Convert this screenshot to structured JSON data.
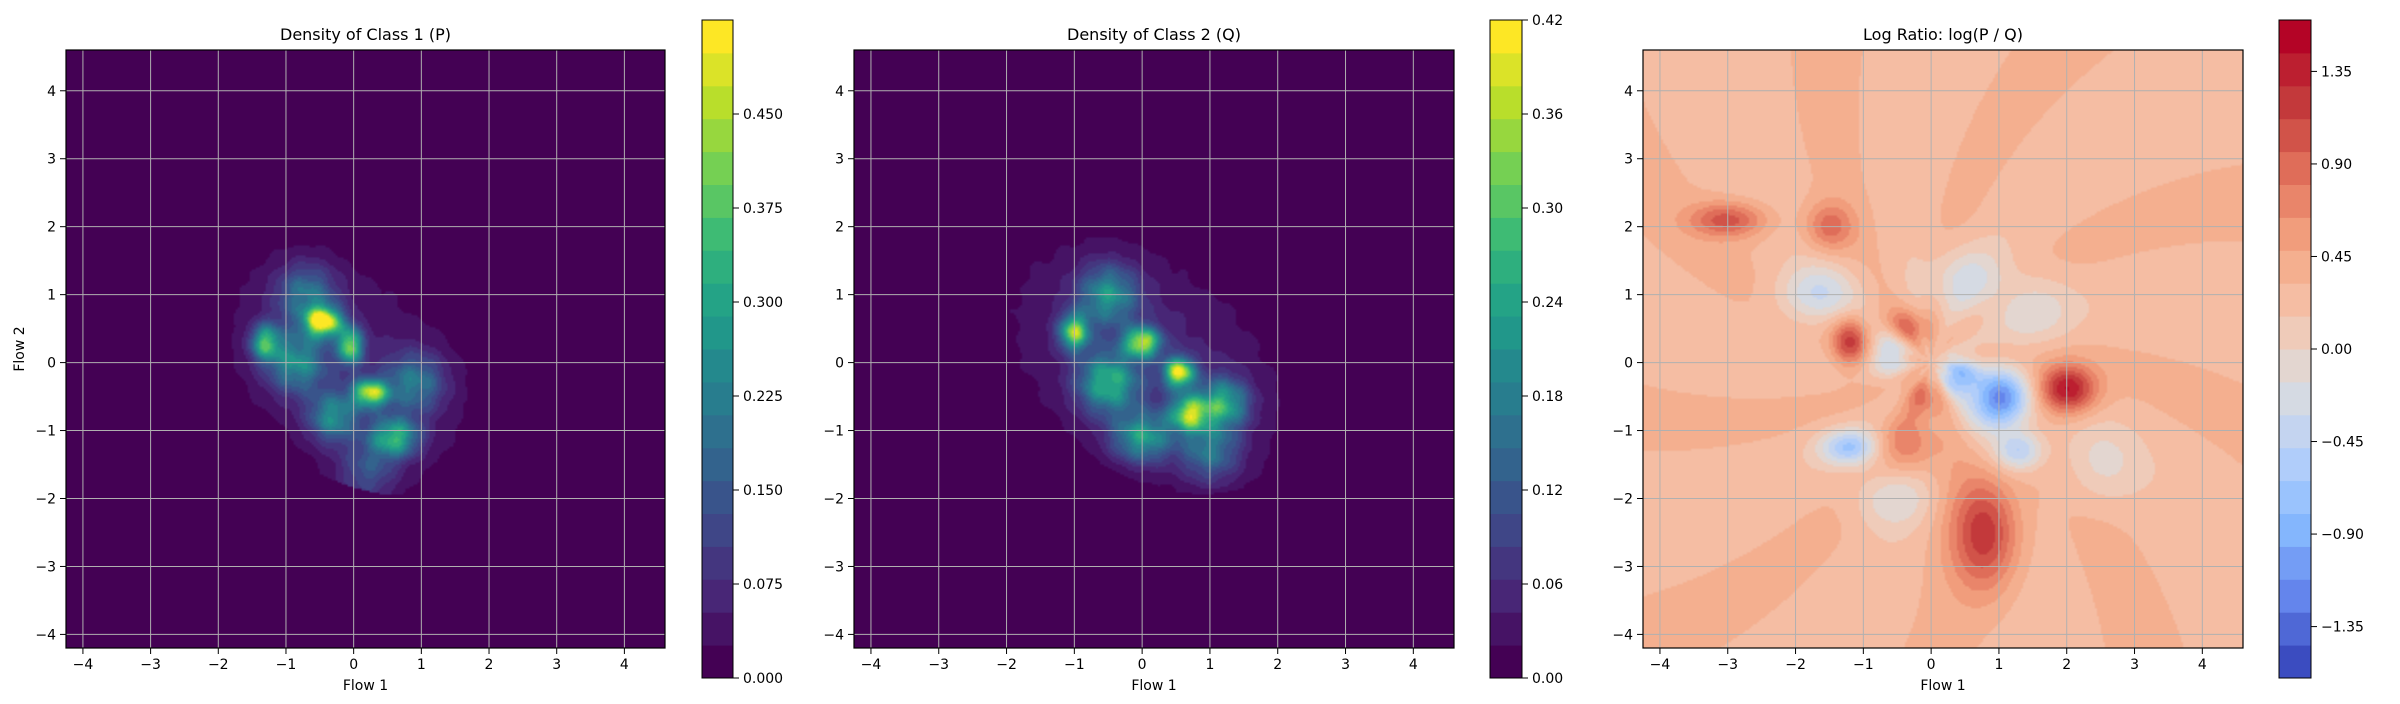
{
  "colors": {
    "viridis": [
      "#440154",
      "#482878",
      "#3e4989",
      "#31688e",
      "#26828e",
      "#1f9e89",
      "#35b779",
      "#6ece58",
      "#b5de2b",
      "#fde725"
    ],
    "coolwarm": [
      "#3b4cc0",
      "#6688ee",
      "#88bbff",
      "#b8d0f9",
      "#dddddd",
      "#f5c4ac",
      "#f4a582",
      "#e2735c",
      "#c43c3c",
      "#b40426"
    ],
    "grid": "#b0b0b0"
  },
  "chart_data": [
    {
      "type": "heatmap",
      "title": "Density of Class 1 (P)",
      "xlabel": "Flow 1",
      "ylabel": "Flow 2",
      "xlim": [
        -4.25,
        4.6
      ],
      "ylim": [
        -4.2,
        4.6
      ],
      "xticks": [
        -4,
        -3,
        -2,
        -1,
        0,
        1,
        2,
        3,
        4
      ],
      "yticks": [
        -4,
        -3,
        -2,
        -1,
        0,
        1,
        2,
        3,
        4
      ],
      "grid": true,
      "colormap": "viridis",
      "colorbar": {
        "range": [
          0,
          0.525
        ],
        "ticks": [
          0,
          0.075,
          0.15,
          0.225,
          0.3,
          0.375,
          0.45
        ],
        "tick_labels": [
          "0.000",
          "0.075",
          "0.150",
          "0.225",
          "0.300",
          "0.375",
          "0.450"
        ]
      },
      "field": {
        "kind": "density",
        "support": {
          "center": [
            -0.1,
            -0.05
          ],
          "radii": [
            2.2,
            1.45
          ],
          "angle_deg": -38
        },
        "peaks": [
          {
            "x": -0.45,
            "y": 0.6,
            "amp": 0.5,
            "sx": 0.18,
            "sy": 0.15
          },
          {
            "x": -0.05,
            "y": 0.25,
            "amp": 0.38,
            "sx": 0.12,
            "sy": 0.18
          },
          {
            "x": 0.25,
            "y": -0.45,
            "amp": 0.42,
            "sx": 0.18,
            "sy": 0.14
          },
          {
            "x": -1.3,
            "y": 0.3,
            "amp": 0.3,
            "sx": 0.15,
            "sy": 0.18
          },
          {
            "x": -0.85,
            "y": 0.0,
            "amp": 0.22,
            "sx": 0.3,
            "sy": 0.3
          },
          {
            "x": 0.6,
            "y": -1.1,
            "amp": 0.3,
            "sx": 0.25,
            "sy": 0.2
          },
          {
            "x": -0.3,
            "y": -0.8,
            "amp": 0.22,
            "sx": 0.25,
            "sy": 0.25
          },
          {
            "x": 0.9,
            "y": -0.3,
            "amp": 0.18,
            "sx": 0.3,
            "sy": 0.3
          },
          {
            "x": -0.7,
            "y": 1.0,
            "amp": 0.18,
            "sx": 0.3,
            "sy": 0.3
          },
          {
            "x": 0.2,
            "y": -1.6,
            "amp": 0.12,
            "sx": 0.3,
            "sy": 0.3
          }
        ]
      }
    },
    {
      "type": "heatmap",
      "title": "Density of Class 2 (Q)",
      "xlabel": "Flow 1",
      "ylabel": "",
      "xlim": [
        -4.25,
        4.6
      ],
      "ylim": [
        -4.2,
        4.6
      ],
      "xticks": [
        -4,
        -3,
        -2,
        -1,
        0,
        1,
        2,
        3,
        4
      ],
      "yticks": [
        -4,
        -3,
        -2,
        -1,
        0,
        1,
        2,
        3,
        4
      ],
      "grid": true,
      "colormap": "viridis",
      "colorbar": {
        "range": [
          0,
          0.42
        ],
        "ticks": [
          0,
          0.06,
          0.12,
          0.18,
          0.24,
          0.3,
          0.36,
          0.42
        ],
        "tick_labels": [
          "0.00",
          "0.06",
          "0.12",
          "0.18",
          "0.24",
          "0.30",
          "0.36",
          "0.42"
        ]
      },
      "field": {
        "kind": "density",
        "support": {
          "center": [
            0.05,
            0.0
          ],
          "radii": [
            2.3,
            1.5
          ],
          "angle_deg": -35
        },
        "peaks": [
          {
            "x": -1.0,
            "y": 0.45,
            "amp": 0.3,
            "sx": 0.15,
            "sy": 0.18
          },
          {
            "x": 0.0,
            "y": 0.3,
            "amp": 0.33,
            "sx": 0.18,
            "sy": 0.15
          },
          {
            "x": 0.55,
            "y": -0.15,
            "amp": 0.36,
            "sx": 0.15,
            "sy": 0.15
          },
          {
            "x": 0.7,
            "y": -0.75,
            "amp": 0.3,
            "sx": 0.2,
            "sy": 0.18
          },
          {
            "x": 1.2,
            "y": -0.6,
            "amp": 0.22,
            "sx": 0.25,
            "sy": 0.25
          },
          {
            "x": -0.5,
            "y": -0.3,
            "amp": 0.22,
            "sx": 0.3,
            "sy": 0.3
          },
          {
            "x": -0.5,
            "y": 1.0,
            "amp": 0.18,
            "sx": 0.3,
            "sy": 0.3
          },
          {
            "x": 0.0,
            "y": -1.1,
            "amp": 0.2,
            "sx": 0.3,
            "sy": 0.25
          },
          {
            "x": 1.0,
            "y": -1.3,
            "amp": 0.14,
            "sx": 0.3,
            "sy": 0.3
          }
        ]
      }
    },
    {
      "type": "heatmap",
      "title": "Log Ratio: log(P / Q)",
      "xlabel": "Flow 1",
      "ylabel": "",
      "xlim": [
        -4.25,
        4.6
      ],
      "ylim": [
        -4.2,
        4.6
      ],
      "xticks": [
        -4,
        -3,
        -2,
        -1,
        0,
        1,
        2,
        3,
        4
      ],
      "yticks": [
        -4,
        -3,
        -2,
        -1,
        0,
        1,
        2,
        3,
        4
      ],
      "grid": true,
      "colormap": "coolwarm",
      "colorbar": {
        "range": [
          -1.6,
          1.6
        ],
        "ticks": [
          -1.35,
          -0.9,
          -0.45,
          0,
          0.45,
          0.9,
          1.35
        ],
        "tick_labels": [
          "−1.35",
          "−0.90",
          "−0.45",
          "0.00",
          "0.45",
          "0.90",
          "1.35"
        ]
      },
      "field": {
        "kind": "ratio",
        "base": 0.28,
        "peaks": [
          {
            "x": 2.0,
            "y": -0.4,
            "amp": 1.2,
            "sx": 0.3,
            "sy": 0.25
          },
          {
            "x": 0.8,
            "y": -2.5,
            "amp": 0.95,
            "sx": 0.35,
            "sy": 0.6
          },
          {
            "x": -1.2,
            "y": 0.3,
            "amp": 0.85,
            "sx": 0.18,
            "sy": 0.25
          },
          {
            "x": -0.4,
            "y": 0.5,
            "amp": 0.75,
            "sx": 0.25,
            "sy": 0.2
          },
          {
            "x": -3.0,
            "y": 2.1,
            "amp": 0.75,
            "sx": 0.4,
            "sy": 0.18
          },
          {
            "x": -1.5,
            "y": 2.0,
            "amp": 0.6,
            "sx": 0.25,
            "sy": 0.25
          },
          {
            "x": -0.3,
            "y": -1.2,
            "amp": 0.5,
            "sx": 0.3,
            "sy": 0.3
          },
          {
            "x": -0.1,
            "y": -0.5,
            "amp": 0.55,
            "sx": 0.2,
            "sy": 0.2
          },
          {
            "x": 1.0,
            "y": -0.55,
            "amp": -1.5,
            "sx": 0.3,
            "sy": 0.3
          },
          {
            "x": 0.4,
            "y": -0.2,
            "amp": -1.0,
            "sx": 0.2,
            "sy": 0.2
          },
          {
            "x": -1.2,
            "y": -1.25,
            "amp": -0.9,
            "sx": 0.3,
            "sy": 0.18
          },
          {
            "x": 1.3,
            "y": -1.3,
            "amp": -0.8,
            "sx": 0.25,
            "sy": 0.2
          },
          {
            "x": -0.6,
            "y": 0.2,
            "amp": -0.8,
            "sx": 0.2,
            "sy": 0.25
          },
          {
            "x": -1.7,
            "y": 1.0,
            "amp": -0.6,
            "sx": 0.4,
            "sy": 0.3
          },
          {
            "x": 0.5,
            "y": 1.2,
            "amp": -0.5,
            "sx": 0.4,
            "sy": 0.35
          },
          {
            "x": 1.5,
            "y": 0.8,
            "amp": -0.35,
            "sx": 0.4,
            "sy": 0.4
          },
          {
            "x": -0.6,
            "y": -2.0,
            "amp": -0.4,
            "sx": 0.4,
            "sy": 0.3
          },
          {
            "x": 2.5,
            "y": -1.5,
            "amp": -0.3,
            "sx": 0.4,
            "sy": 0.4
          }
        ]
      }
    }
  ]
}
